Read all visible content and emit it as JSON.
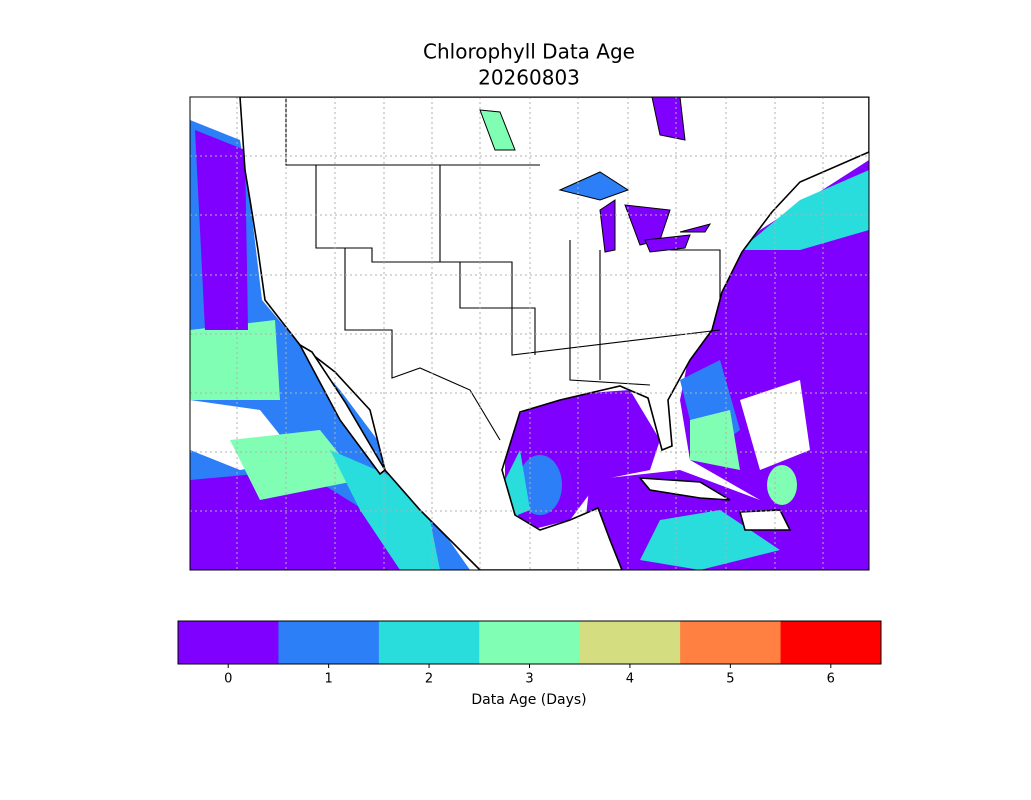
{
  "title": "Chlorophyll Data Age",
  "subtitle": "20260803",
  "colorbar": {
    "label": "Data Age (Days)",
    "ticks": [
      0,
      1,
      2,
      3,
      4,
      5,
      6
    ],
    "colors": [
      "#7f00ff",
      "#2c7ff7",
      "#2adddd",
      "#80ffb4",
      "#d4dd80",
      "#ff8040",
      "#ff0000"
    ]
  }
}
